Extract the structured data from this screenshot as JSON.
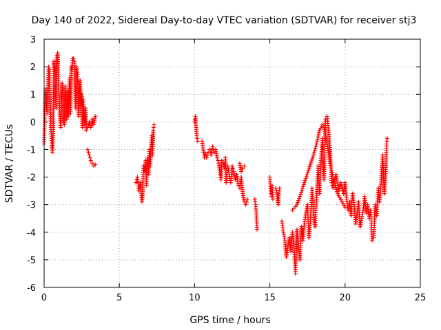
{
  "chart_data": {
    "type": "scatter",
    "title": "Day 140 of 2022, Sidereal Day-to-day VTEC variation (SDTVAR) for receiver stj3",
    "xlabel": "GPS time / hours",
    "ylabel": "SDTVAR / TECUs",
    "xlim": [
      0,
      25
    ],
    "ylim": [
      -6,
      3
    ],
    "xticks": [
      0,
      5,
      10,
      15,
      20,
      25
    ],
    "yticks": [
      -6,
      -5,
      -4,
      -3,
      -2,
      -1,
      0,
      1,
      2,
      3
    ],
    "grid": true,
    "marker": "plus",
    "series_color": "#ff0000",
    "series": [
      {
        "name": "SDTVAR",
        "segments": [
          [
            [
              0.0,
              -0.8
            ],
            [
              0.05,
              0.3
            ],
            [
              0.1,
              1.2
            ],
            [
              0.15,
              0.6
            ],
            [
              0.2,
              0.3
            ],
            [
              0.25,
              1.0
            ],
            [
              0.3,
              2.0
            ],
            [
              0.35,
              1.9
            ],
            [
              0.4,
              0.9
            ],
            [
              0.45,
              -0.2
            ],
            [
              0.5,
              -0.6
            ],
            [
              0.55,
              -1.1
            ],
            [
              0.6,
              -0.5
            ],
            [
              0.65,
              2.2
            ],
            [
              0.7,
              2.0
            ],
            [
              0.75,
              1.2
            ],
            [
              0.8,
              0.5
            ],
            [
              0.85,
              2.4
            ],
            [
              0.9,
              2.5
            ],
            [
              0.95,
              1.5
            ],
            [
              1.0,
              0.9
            ],
            [
              1.05,
              0.2
            ],
            [
              1.1,
              -0.2
            ],
            [
              1.15,
              0.6
            ],
            [
              1.2,
              1.4
            ],
            [
              1.25,
              0.8
            ],
            [
              1.3,
              0.0
            ],
            [
              1.35,
              -0.1
            ],
            [
              1.4,
              1.3
            ],
            [
              1.45,
              0.7
            ],
            [
              1.5,
              0.1
            ],
            [
              1.55,
              1.1
            ],
            [
              1.6,
              0.2
            ],
            [
              1.65,
              1.0
            ],
            [
              1.7,
              1.6
            ],
            [
              1.75,
              0.3
            ],
            [
              1.8,
              2.0
            ],
            [
              1.85,
              1.9
            ],
            [
              1.9,
              2.3
            ],
            [
              1.95,
              2.3
            ],
            [
              2.0,
              2.2
            ],
            [
              2.05,
              1.2
            ],
            [
              2.1,
              0.5
            ],
            [
              2.15,
              2.0
            ],
            [
              2.2,
              1.8
            ],
            [
              2.25,
              1.3
            ],
            [
              2.3,
              0.2
            ],
            [
              2.35,
              1.1
            ],
            [
              2.4,
              1.5
            ],
            [
              2.45,
              0.6
            ],
            [
              2.5,
              1.0
            ],
            [
              2.55,
              -0.2
            ],
            [
              2.6,
              0.8
            ],
            [
              2.65,
              0.4
            ],
            [
              2.7,
              -0.1
            ],
            [
              2.75,
              0.5
            ],
            [
              2.8,
              -0.3
            ],
            [
              2.9,
              -0.2
            ],
            [
              3.0,
              0.0
            ],
            [
              3.1,
              -0.2
            ],
            [
              3.2,
              0.1
            ],
            [
              3.3,
              -0.1
            ],
            [
              3.4,
              0.2
            ]
          ],
          [
            [
              2.9,
              -1.0
            ],
            [
              3.0,
              -1.2
            ],
            [
              3.1,
              -1.4
            ],
            [
              3.2,
              -1.5
            ],
            [
              3.3,
              -1.6
            ],
            [
              3.4,
              -1.55
            ]
          ],
          [
            [
              6.1,
              -2.2
            ],
            [
              6.2,
              -2.0
            ],
            [
              6.3,
              -2.5
            ],
            [
              6.4,
              -2.2
            ],
            [
              6.5,
              -2.9
            ],
            [
              6.55,
              -2.6
            ],
            [
              6.6,
              -1.6
            ],
            [
              6.7,
              -1.8
            ],
            [
              6.75,
              -1.4
            ],
            [
              6.8,
              -2.3
            ],
            [
              6.85,
              -1.4
            ],
            [
              6.9,
              -1.3
            ],
            [
              6.95,
              -1.9
            ],
            [
              7.0,
              -1.0
            ],
            [
              7.05,
              -1.6
            ],
            [
              7.1,
              -0.9
            ],
            [
              7.15,
              -0.5
            ],
            [
              7.2,
              -1.2
            ],
            [
              7.25,
              -0.3
            ],
            [
              7.3,
              -0.1
            ]
          ],
          [
            [
              10.0,
              0.0
            ],
            [
              10.05,
              0.2
            ],
            [
              10.1,
              -0.2
            ],
            [
              10.15,
              -0.5
            ],
            [
              10.2,
              -0.7
            ]
          ],
          [
            [
              10.5,
              -0.7
            ],
            [
              10.6,
              -1.1
            ],
            [
              10.65,
              -1.3
            ],
            [
              10.7,
              -1.1
            ],
            [
              10.8,
              -1.3
            ],
            [
              10.9,
              -1.1
            ],
            [
              11.0,
              -1.0
            ],
            [
              11.1,
              -1.2
            ],
            [
              11.2,
              -0.9
            ],
            [
              11.3,
              -1.1
            ],
            [
              11.4,
              -1.0
            ],
            [
              11.5,
              -1.3
            ],
            [
              11.6,
              -1.5
            ],
            [
              11.7,
              -1.9
            ],
            [
              11.75,
              -2.1
            ],
            [
              11.8,
              -1.4
            ],
            [
              11.9,
              -1.5
            ],
            [
              12.0,
              -1.7
            ],
            [
              12.05,
              -1.3
            ],
            [
              12.1,
              -2.2
            ],
            [
              12.2,
              -1.6
            ],
            [
              12.3,
              -1.9
            ],
            [
              12.4,
              -2.2
            ],
            [
              12.5,
              -1.6
            ],
            [
              12.6,
              -1.8
            ],
            [
              12.7,
              -2.1
            ],
            [
              12.8,
              -1.9
            ],
            [
              12.9,
              -2.3
            ],
            [
              13.0,
              -2.4
            ],
            [
              13.1,
              -2.0
            ],
            [
              13.2,
              -2.6
            ],
            [
              13.3,
              -2.9
            ],
            [
              13.4,
              -3.0
            ],
            [
              13.5,
              -2.8
            ]
          ],
          [
            [
              13.0,
              -1.5
            ],
            [
              13.1,
              -1.8
            ],
            [
              13.2,
              -1.7
            ],
            [
              13.3,
              -1.6
            ]
          ],
          [
            [
              14.0,
              -2.8
            ],
            [
              14.05,
              -3.0
            ],
            [
              14.1,
              -3.3
            ],
            [
              14.15,
              -3.9
            ]
          ],
          [
            [
              15.0,
              -2.0
            ],
            [
              15.05,
              -2.5
            ],
            [
              15.1,
              -2.7
            ],
            [
              15.15,
              -2.3
            ],
            [
              15.2,
              -2.8
            ]
          ],
          [
            [
              15.4,
              -2.4
            ],
            [
              15.5,
              -2.7
            ],
            [
              15.55,
              -3.0
            ],
            [
              15.6,
              -2.6
            ],
            [
              15.65,
              -2.4
            ]
          ],
          [
            [
              15.8,
              -3.6
            ],
            [
              15.9,
              -4.0
            ],
            [
              16.0,
              -4.3
            ],
            [
              16.1,
              -4.9
            ],
            [
              16.2,
              -4.5
            ],
            [
              16.3,
              -4.2
            ],
            [
              16.4,
              -4.7
            ],
            [
              16.5,
              -4.0
            ],
            [
              16.6,
              -4.5
            ],
            [
              16.7,
              -5.5
            ],
            [
              16.75,
              -4.9
            ],
            [
              16.8,
              -3.9
            ],
            [
              16.9,
              -4.4
            ],
            [
              17.0,
              -5.0
            ],
            [
              17.1,
              -3.8
            ],
            [
              17.2,
              -4.3
            ],
            [
              17.3,
              -3.7
            ],
            [
              17.4,
              -3.3
            ],
            [
              17.5,
              -3.0
            ],
            [
              17.6,
              -4.2
            ],
            [
              17.7,
              -3.6
            ],
            [
              17.8,
              -2.4
            ],
            [
              17.9,
              -3.3
            ],
            [
              18.0,
              -3.8
            ],
            [
              18.1,
              -2.9
            ],
            [
              18.2,
              -1.6
            ],
            [
              18.3,
              -2.6
            ],
            [
              18.4,
              -1.4
            ],
            [
              18.5,
              -0.6
            ],
            [
              18.6,
              -2.1
            ],
            [
              18.65,
              -1.2
            ],
            [
              18.7,
              0.1
            ],
            [
              18.8,
              0.2
            ],
            [
              18.9,
              -0.3
            ],
            [
              19.0,
              -1.0
            ],
            [
              19.05,
              -1.6
            ],
            [
              19.1,
              -2.2
            ],
            [
              19.2,
              -2.4
            ],
            [
              19.3,
              -2.1
            ],
            [
              19.4,
              -1.9
            ],
            [
              19.5,
              -2.3
            ],
            [
              19.6,
              -2.5
            ],
            [
              19.7,
              -2.2
            ],
            [
              19.8,
              -2.4
            ],
            [
              19.9,
              -2.6
            ],
            [
              20.0,
              -2.2
            ],
            [
              20.1,
              -2.8
            ],
            [
              20.2,
              -3.2
            ],
            [
              20.3,
              -2.9
            ],
            [
              20.4,
              -3.4
            ],
            [
              20.5,
              -2.6
            ],
            [
              20.6,
              -3.0
            ],
            [
              20.7,
              -3.7
            ],
            [
              20.8,
              -3.3
            ],
            [
              20.9,
              -2.9
            ],
            [
              21.0,
              -3.8
            ],
            [
              21.1,
              -3.5
            ],
            [
              21.2,
              -3.2
            ],
            [
              21.3,
              -2.7
            ],
            [
              21.4,
              -3.3
            ],
            [
              21.5,
              -3.0
            ],
            [
              21.6,
              -3.5
            ],
            [
              21.7,
              -3.2
            ],
            [
              21.8,
              -4.3
            ],
            [
              21.9,
              -4.2
            ],
            [
              22.0,
              -3.0
            ],
            [
              22.1,
              -3.4
            ],
            [
              22.2,
              -2.4
            ],
            [
              22.3,
              -2.9
            ],
            [
              22.4,
              -2.1
            ],
            [
              22.5,
              -1.2
            ],
            [
              22.6,
              -2.6
            ],
            [
              22.7,
              -1.8
            ],
            [
              22.75,
              -0.8
            ],
            [
              22.8,
              -0.6
            ]
          ],
          [
            [
              16.5,
              -3.2
            ],
            [
              16.8,
              -3.0
            ],
            [
              17.0,
              -2.7
            ],
            [
              17.3,
              -2.2
            ],
            [
              17.6,
              -1.7
            ],
            [
              17.9,
              -1.2
            ],
            [
              18.1,
              -0.8
            ],
            [
              18.3,
              -0.3
            ],
            [
              18.5,
              -0.1
            ],
            [
              18.6,
              -0.2
            ],
            [
              18.8,
              -0.8
            ],
            [
              19.0,
              -1.5
            ],
            [
              19.2,
              -2.0
            ],
            [
              19.5,
              -2.6
            ],
            [
              19.8,
              -2.9
            ],
            [
              20.0,
              -3.1
            ]
          ]
        ]
      }
    ]
  }
}
